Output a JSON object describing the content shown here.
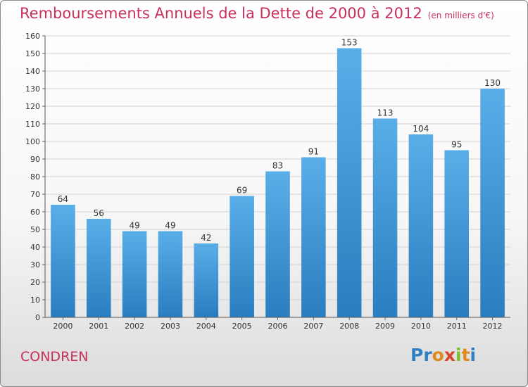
{
  "header": {
    "title": "Remboursements Annuels de la Dette de 2000 à 2012",
    "subtitle": "(en milliers d'€)"
  },
  "footer": {
    "commune": "CONDREN",
    "brand": "Proxiti"
  },
  "colors": {
    "title": "#c8305a",
    "bar_top": "#5aaee8",
    "bar_bottom": "#2a7dbf",
    "logo_letters": [
      "#2f7fc2",
      "#2f7fc2",
      "#e08a1e",
      "#d9452b",
      "#7bbf2a",
      "#e08a1e",
      "#2f7fc2"
    ]
  },
  "chart_data": {
    "type": "bar",
    "title": "Remboursements Annuels de la Dette de 2000 à 2012",
    "subtitle": "(en milliers d'€)",
    "categories": [
      "2000",
      "2001",
      "2002",
      "2003",
      "2004",
      "2005",
      "2006",
      "2007",
      "2008",
      "2009",
      "2010",
      "2011",
      "2012"
    ],
    "values": [
      64,
      56,
      49,
      49,
      42,
      69,
      83,
      91,
      153,
      113,
      104,
      95,
      130
    ],
    "ylim": [
      0,
      160
    ],
    "yticks": [
      0,
      10,
      20,
      30,
      40,
      50,
      60,
      70,
      80,
      90,
      100,
      110,
      120,
      130,
      140,
      150,
      160
    ],
    "grid": true,
    "data_labels": true
  }
}
